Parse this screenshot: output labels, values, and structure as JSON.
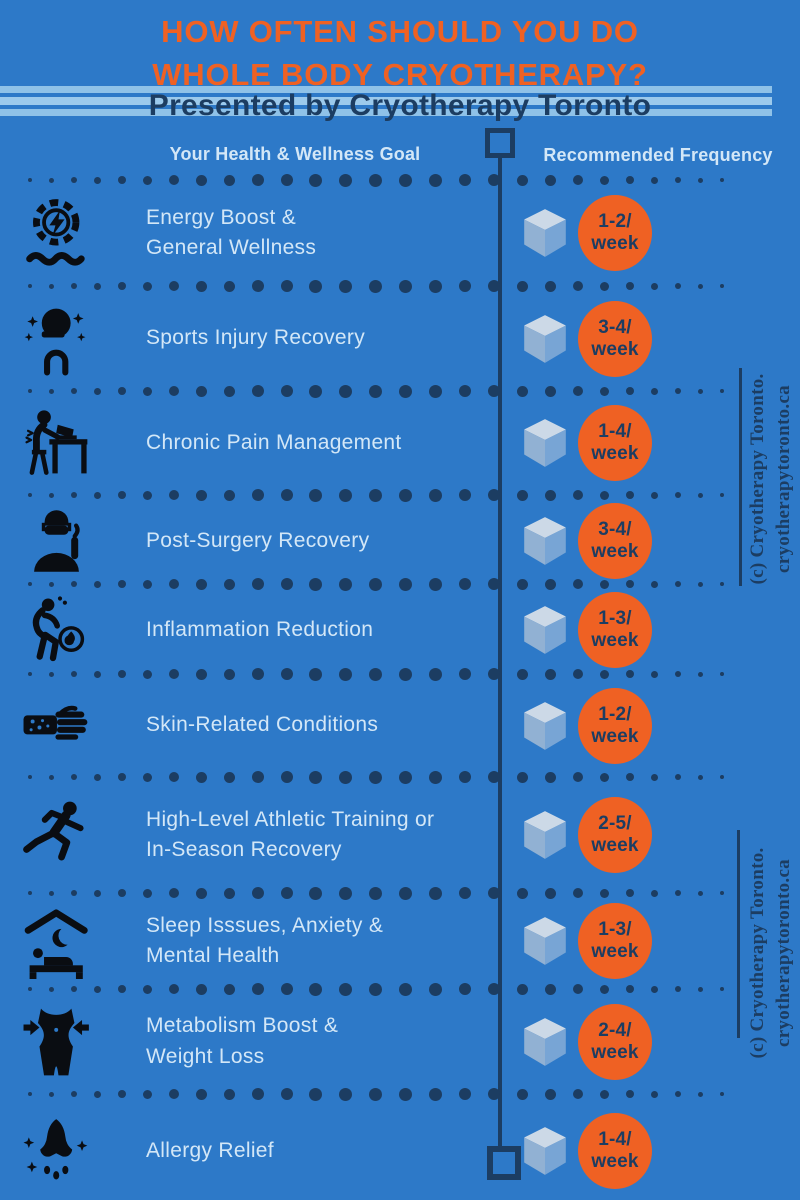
{
  "title": {
    "line1": "HOW OFTEN SHOULD YOU DO",
    "line2": "WHOLE BODY CRYOTHERAPY?"
  },
  "banner": {
    "subtitle": "Presented by Cryotherapy Toronto"
  },
  "columns": {
    "goal": "Your Health & Wellness Goal",
    "frequency": "Recommended Frequency"
  },
  "watermark": {
    "line1": "(c) Cryotherapy Toronto.",
    "line2": "cryotherapytoronto.ca"
  },
  "rows": [
    {
      "icon": "energy-gear-lightning-icon",
      "goal": "Energy Boost &\nGeneral Wellness",
      "value": "1-2/",
      "unit": "week"
    },
    {
      "icon": "sports-helmet-icon",
      "goal": "Sports Injury Recovery",
      "value": "3-4/",
      "unit": "week"
    },
    {
      "icon": "desk-back-pain-icon",
      "goal": "Chronic Pain Management",
      "value": "1-4/",
      "unit": "week"
    },
    {
      "icon": "surgeon-thumbs-up-icon",
      "goal": "Post-Surgery Recovery",
      "value": "3-4/",
      "unit": "week"
    },
    {
      "icon": "back-pain-flame-icon",
      "goal": "Inflammation Reduction",
      "value": "1-3/",
      "unit": "week"
    },
    {
      "icon": "skin-arm-spots-icon",
      "goal": "Skin-Related Conditions",
      "value": "1-2/",
      "unit": "week"
    },
    {
      "icon": "sprinter-icon",
      "goal": "High-Level Athletic Training or\nIn-Season Recovery",
      "value": "2-5/",
      "unit": "week"
    },
    {
      "icon": "sleep-bed-moon-icon",
      "goal": "Sleep Isssues, Anxiety &\nMental Health",
      "value": "1-3/",
      "unit": "week"
    },
    {
      "icon": "slim-waist-arrows-icon",
      "goal": "Metabolism Boost &\nWeight Loss",
      "value": "2-4/",
      "unit": "week"
    },
    {
      "icon": "sneezing-nose-icon",
      "goal": "Allergy Relief",
      "value": "1-4/",
      "unit": "week"
    }
  ],
  "colors": {
    "background": "#2d79c8",
    "navy": "#1c3d62",
    "light_text": "#d3e7f7",
    "accent_orange": "#ef6123",
    "stripe": "#8fc2e8"
  }
}
